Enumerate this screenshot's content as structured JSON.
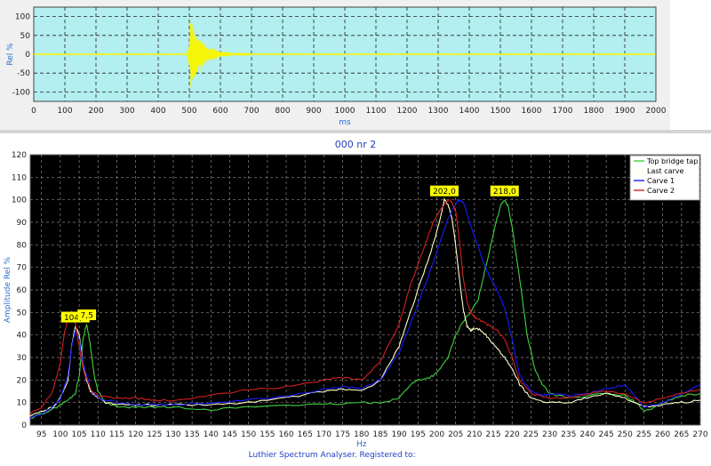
{
  "chart_data": [
    {
      "type": "line",
      "title": "",
      "xlabel": "ms",
      "ylabel": "Rel %",
      "xlim": [
        0,
        2000
      ],
      "ylim": [
        -125,
        125
      ],
      "xticks": [
        0,
        100,
        200,
        300,
        400,
        500,
        600,
        700,
        800,
        900,
        1000,
        1100,
        1200,
        1300,
        1400,
        1500,
        1600,
        1700,
        1800,
        1900,
        2000
      ],
      "yticks": [
        -100,
        -50,
        0,
        50,
        100
      ],
      "grid": true,
      "background": "#b3eef0",
      "series": [
        {
          "color": "#f5f50a",
          "envelope": {
            "x": [
              0,
              490,
              500,
              505,
              510,
              515,
              525,
              540,
              560,
              600,
              650,
              700,
              2000
            ],
            "amp": [
              1,
              1,
              30,
              95,
              90,
              70,
              55,
              38,
              22,
              8,
              3,
              1,
              1
            ]
          }
        }
      ]
    },
    {
      "type": "line",
      "title": "000 nr 2",
      "xlabel": "Hz",
      "ylabel": "Amplitude Rel %",
      "xlim": [
        92,
        270
      ],
      "ylim": [
        0,
        120
      ],
      "xticks": [
        95,
        100,
        105,
        110,
        115,
        120,
        125,
        130,
        135,
        140,
        145,
        150,
        155,
        160,
        165,
        170,
        175,
        180,
        185,
        190,
        195,
        200,
        205,
        210,
        215,
        220,
        225,
        230,
        235,
        240,
        245,
        250,
        255,
        260,
        265,
        270
      ],
      "yticks": [
        0,
        10,
        20,
        30,
        40,
        50,
        60,
        70,
        80,
        90,
        100,
        110,
        120
      ],
      "grid": true,
      "background": "#000000",
      "legend_position": "top-right",
      "series": [
        {
          "name": "Top bridge tap",
          "color": "#3fd33f",
          "x": [
            92,
            95,
            98,
            100,
            102,
            104,
            105,
            106,
            107,
            108,
            109,
            110,
            112,
            115,
            120,
            125,
            130,
            140,
            150,
            160,
            170,
            180,
            185,
            190,
            193,
            195,
            198,
            200,
            203,
            205,
            207,
            209,
            211,
            213,
            215,
            217,
            218,
            219,
            220,
            222,
            224,
            226,
            228,
            230,
            235,
            240,
            245,
            250,
            253,
            255,
            258,
            260,
            265,
            270
          ],
          "y": [
            3,
            5,
            7,
            9,
            11,
            14,
            22,
            38,
            45,
            35,
            22,
            15,
            10,
            8,
            8,
            8,
            8,
            7,
            8,
            9,
            9,
            10,
            10,
            12,
            18,
            20,
            21,
            23,
            30,
            40,
            46,
            50,
            56,
            70,
            85,
            98,
            100,
            97,
            88,
            65,
            40,
            25,
            18,
            14,
            12,
            13,
            14,
            13,
            10,
            6,
            8,
            10,
            13,
            14
          ]
        },
        {
          "name": "Last carve",
          "color": "#ffffcc",
          "x": [
            92,
            95,
            98,
            100,
            102,
            103,
            104,
            105,
            106,
            107,
            108,
            110,
            112,
            115,
            120,
            125,
            130,
            140,
            150,
            160,
            170,
            175,
            180,
            185,
            190,
            193,
            196,
            199,
            201,
            202,
            203,
            204,
            205,
            206,
            207,
            208,
            209,
            210,
            212,
            214,
            216,
            218,
            220,
            222,
            225,
            230,
            235,
            240,
            245,
            250,
            255,
            260,
            265,
            270
          ],
          "y": [
            4,
            6,
            8,
            12,
            20,
            35,
            44,
            40,
            28,
            20,
            15,
            12,
            10,
            9,
            9,
            9,
            9,
            9,
            10,
            12,
            15,
            16,
            15,
            20,
            35,
            50,
            65,
            80,
            92,
            100,
            98,
            92,
            80,
            65,
            52,
            44,
            42,
            43,
            42,
            38,
            34,
            30,
            25,
            18,
            12,
            10,
            10,
            12,
            14,
            12,
            8,
            9,
            10,
            11
          ]
        },
        {
          "name": "Carve 1",
          "color": "#1a1aff",
          "x": [
            92,
            95,
            98,
            100,
            102,
            103,
            104,
            105,
            106,
            108,
            110,
            115,
            120,
            125,
            130,
            140,
            150,
            160,
            170,
            175,
            180,
            185,
            190,
            193,
            196,
            199,
            201,
            203,
            205,
            206,
            207,
            208,
            210,
            212,
            214,
            216,
            218,
            220,
            222,
            225,
            228,
            230,
            235,
            240,
            245,
            250,
            255,
            260,
            265,
            270
          ],
          "y": [
            3,
            5,
            8,
            12,
            22,
            35,
            42,
            38,
            28,
            16,
            12,
            10,
            9,
            9,
            9,
            10,
            11,
            13,
            16,
            17,
            16,
            20,
            32,
            45,
            58,
            72,
            82,
            92,
            98,
            100,
            99,
            94,
            84,
            74,
            66,
            60,
            52,
            38,
            22,
            15,
            13,
            14,
            13,
            14,
            16,
            18,
            8,
            10,
            14,
            18
          ]
        },
        {
          "name": "Carve 2",
          "color": "#d42020",
          "x": [
            92,
            95,
            98,
            100,
            101,
            102,
            103,
            104,
            105,
            106,
            108,
            110,
            115,
            120,
            125,
            130,
            140,
            150,
            160,
            170,
            175,
            180,
            185,
            190,
            193,
            196,
            199,
            201,
            203,
            204,
            205,
            206,
            207,
            208,
            209,
            210,
            212,
            214,
            216,
            218,
            220,
            222,
            225,
            230,
            235,
            240,
            245,
            250,
            255,
            260,
            265,
            270
          ],
          "y": [
            5,
            8,
            15,
            28,
            40,
            48,
            50,
            45,
            35,
            25,
            16,
            13,
            12,
            12,
            11,
            11,
            13,
            16,
            17,
            20,
            21,
            20,
            28,
            45,
            62,
            76,
            90,
            96,
            100,
            99,
            95,
            82,
            66,
            55,
            50,
            48,
            46,
            44,
            42,
            38,
            30,
            20,
            14,
            12,
            12,
            14,
            15,
            14,
            10,
            12,
            14,
            16
          ]
        }
      ],
      "annotations": [
        {
          "text": "104,0",
          "x": 104,
          "y": 44
        },
        {
          "text": "7,5",
          "x": 107.5,
          "y": 45
        },
        {
          "text": "202,0",
          "x": 202,
          "y": 100
        },
        {
          "text": "218,0",
          "x": 218,
          "y": 100
        }
      ],
      "footer": "Luthier Spectrum Analyser.   Registered to:"
    }
  ]
}
